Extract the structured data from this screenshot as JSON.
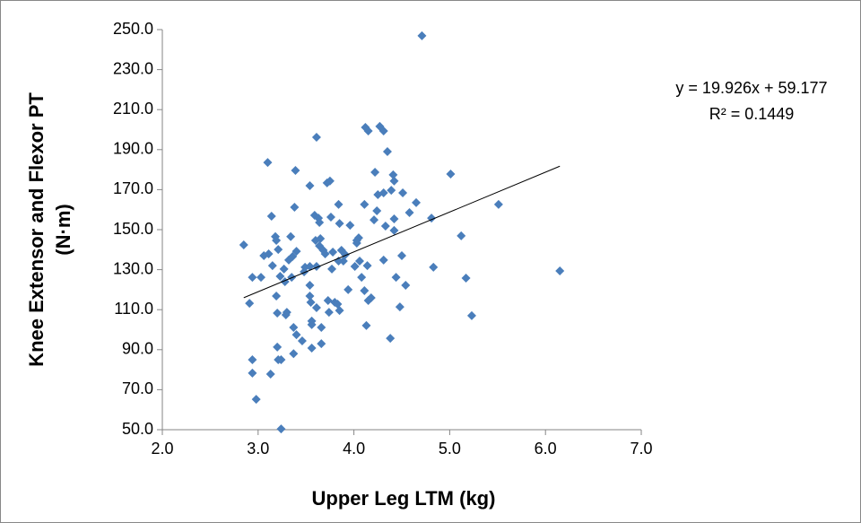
{
  "chart_data": {
    "type": "scatter",
    "xlabel": "Upper Leg LTM (kg)",
    "ylabel": [
      "Knee Extensor and Flexor  PT",
      "(N·m)"
    ],
    "color": "#4a7ebb",
    "xlim": [
      2,
      7
    ],
    "ylim": [
      50,
      250
    ],
    "xticks": [
      {
        "value": 2,
        "label": "2.0"
      },
      {
        "value": 3,
        "label": "3.0"
      },
      {
        "value": 4,
        "label": "4.0"
      },
      {
        "value": 5,
        "label": "5.0"
      },
      {
        "value": 6,
        "label": "6.0"
      },
      {
        "value": 7,
        "label": "7.0"
      }
    ],
    "yticks": [
      {
        "value": 50,
        "label": "50.0"
      },
      {
        "value": 70,
        "label": "70.0"
      },
      {
        "value": 90,
        "label": "90.0"
      },
      {
        "value": 110,
        "label": "110.0"
      },
      {
        "value": 130,
        "label": "130.0"
      },
      {
        "value": 150,
        "label": "150.0"
      },
      {
        "value": 170,
        "label": "170.0"
      },
      {
        "value": 190,
        "label": "190.0"
      },
      {
        "value": 210,
        "label": "210.0"
      },
      {
        "value": 230,
        "label": "230.0"
      },
      {
        "value": 250,
        "label": "250.0"
      }
    ],
    "trendline": {
      "slope": 19.926,
      "intercept": 59.177,
      "r2": 0.1449,
      "label": "y = 19.926x + 59.177",
      "r2_label": "R² = 0.1449",
      "color": "#000000"
    },
    "x": [
      2.85,
      2.91,
      2.94,
      2.94,
      2.94,
      2.98,
      3.03,
      3.06,
      3.1,
      3.11,
      3.13,
      3.14,
      3.15,
      3.18,
      3.19,
      3.19,
      3.2,
      3.2,
      3.21,
      3.24,
      3.21,
      3.23,
      3.24,
      3.27,
      3.28,
      3.29,
      3.3,
      3.32,
      3.34,
      3.35,
      3.36,
      3.37,
      3.37,
      3.38,
      3.39,
      3.4,
      3.4,
      3.46,
      3.48,
      3.49,
      3.54,
      3.54,
      3.54,
      3.54,
      3.55,
      3.56,
      3.56,
      3.56,
      3.59,
      3.6,
      3.61,
      3.61,
      3.61,
      3.63,
      3.64,
      3.64,
      3.65,
      3.66,
      3.66,
      3.68,
      3.7,
      3.72,
      3.73,
      3.74,
      3.75,
      3.76,
      3.77,
      3.78,
      3.8,
      3.83,
      3.84,
      3.84,
      3.85,
      3.85,
      3.87,
      3.89,
      3.91,
      3.94,
      3.96,
      4.01,
      4.03,
      4.03,
      4.05,
      4.06,
      4.08,
      4.11,
      4.11,
      4.12,
      4.13,
      4.14,
      4.15,
      4.15,
      4.18,
      4.21,
      4.22,
      4.24,
      4.25,
      4.27,
      4.31,
      4.31,
      4.31,
      4.33,
      4.35,
      4.38,
      4.39,
      4.41,
      4.42,
      4.42,
      4.42,
      4.44,
      4.48,
      4.5,
      4.51,
      4.54,
      4.58,
      4.65,
      4.71,
      4.81,
      4.83,
      5.01,
      5.12,
      5.17,
      5.23,
      5.51,
      6.15
    ],
    "values": [
      142.4,
      113.2,
      126.2,
      78.3,
      85.0,
      65.2,
      126.2,
      137.0,
      183.6,
      137.9,
      77.8,
      156.7,
      132.0,
      146.5,
      144.6,
      116.8,
      108.3,
      91.3,
      85.0,
      85.0,
      140.1,
      126.7,
      50.4,
      130.3,
      124.0,
      107.4,
      108.7,
      134.8,
      146.5,
      126.2,
      136.6,
      101.1,
      88.0,
      161.2,
      179.6,
      139.2,
      97.5,
      94.4,
      128.9,
      131.2,
      131.6,
      172.0,
      122.2,
      116.8,
      113.7,
      104.3,
      90.8,
      102.5,
      157.2,
      144.6,
      196.2,
      131.6,
      111.0,
      155.8,
      141.9,
      153.6,
      145.5,
      93.0,
      101.1,
      139.7,
      137.9,
      173.4,
      114.6,
      108.7,
      174.3,
      156.3,
      130.3,
      138.8,
      113.7,
      112.8,
      162.6,
      134.3,
      109.6,
      153.1,
      139.7,
      134.3,
      137.5,
      120.0,
      152.2,
      131.6,
      144.6,
      143.3,
      145.9,
      134.3,
      126.2,
      119.5,
      162.6,
      201.1,
      102.1,
      132.0,
      199.3,
      114.6,
      115.9,
      154.9,
      178.7,
      159.4,
      167.5,
      201.6,
      199.3,
      134.8,
      168.4,
      151.8,
      189.0,
      95.7,
      169.7,
      177.4,
      174.3,
      155.4,
      149.6,
      126.2,
      111.4,
      137.0,
      168.4,
      122.2,
      158.5,
      163.5,
      246.9,
      155.8,
      131.2,
      177.8,
      146.9,
      125.8,
      107.0,
      162.6,
      129.4
    ]
  }
}
